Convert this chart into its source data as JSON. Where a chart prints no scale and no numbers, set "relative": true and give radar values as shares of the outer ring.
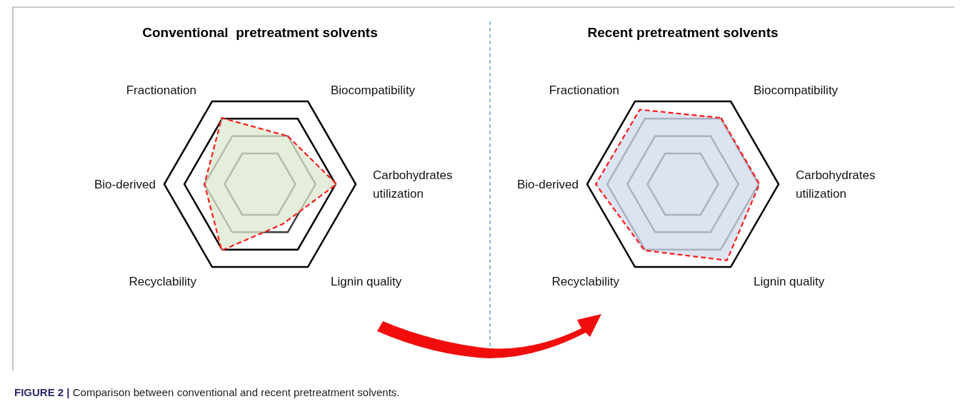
{
  "chart_data": [
    {
      "type": "radar",
      "title": "Conventional  pretreatment solvents",
      "categories": [
        "Biocompatibility",
        "Carbohydrates utilization",
        "Lignin quality",
        "Recyclability",
        "Bio-derived",
        "Fractionation"
      ],
      "relative": true,
      "grid": true,
      "line_style": "dashed",
      "marker": "none",
      "series": [
        {
          "color": "#dce8cd",
          "values": [
            0.58,
            0.8,
            0.48,
            0.8,
            0.58,
            0.8
          ]
        }
      ],
      "annotations": [
        "FIGURE 2 | Comparison between conventional and recent pretreatment solvents."
      ]
    },
    {
      "type": "radar",
      "title": "Recent pretreatment solvents",
      "categories": [
        "Biocompatibility",
        "Carbohydrates utilization",
        "Lignin quality",
        "Recyclability",
        "Bio-derived",
        "Fractionation"
      ],
      "relative": true,
      "grid": true,
      "line_style": "dashed",
      "marker": "none",
      "series": [
        {
          "color": "#d2dbec",
          "values": [
            0.8,
            0.8,
            0.92,
            0.8,
            0.91,
            0.9
          ]
        }
      ]
    }
  ]
}
